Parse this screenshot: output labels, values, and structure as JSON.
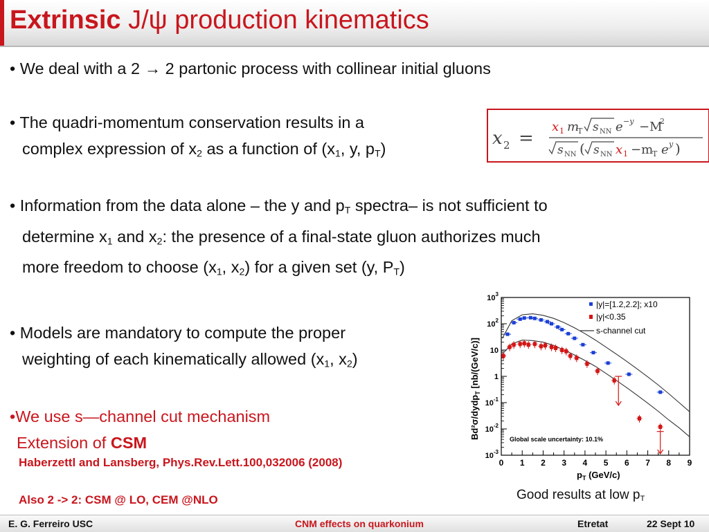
{
  "title": {
    "bold": "Extrinsic",
    "rest": " J/ψ production kinematics"
  },
  "bullets": {
    "b1": "We deal with a 2 → 2 partonic process with collinear initial gluons",
    "b2_line1": "The quadri-momentum  conservation results in a",
    "b2_line2_a": "complex expression of x",
    "b2_line2_b": " as a function of (x",
    "b2_line2_c": ", y, p",
    "b3_line1_a": "Information from the data alone – the y and p",
    "b3_line1_b": " spectra– is not sufficient to",
    "b3_line2_a": "determine x",
    "b3_line2_b": " and x",
    "b3_line2_c": ": the presence of a final-state gluon authorizes much",
    "b3_line3_a": "more freedom to choose (x",
    "b3_line3_b": ", x",
    "b3_line3_c": ") for a given set (y, P",
    "b4_line1": "Models are mandatory to compute the proper",
    "b4_line2_a": "weighting of each kinematically allowed (x",
    "b4_line2_b": ", x",
    "b5_line1": "We use s—channel cut mechanism",
    "b5_line2_a": "Extension of ",
    "b5_line2_b": "CSM",
    "ref": "Haberzettl and Lansberg, Phys.Rev.Lett.100,032006 (2008)",
    "also": "Also 2 -> 2: CSM @ LO, CEM @NLO"
  },
  "formula": {
    "lhs": "x",
    "lhs_sub": "2",
    "equals": "=",
    "num_x1": "x",
    "num_x1_sub": "1",
    "num_mt": "m",
    "num_mt_sub": "T",
    "sqrt_s": "s",
    "sqrt_s_sub": "NN",
    "exp_e": "e",
    "exp_neg_y": "−y",
    "minus_M": "−M",
    "sq": "2",
    "den_open": "(",
    "den_minus_mt": "−m",
    "den_exp_y": "y",
    "den_close": ")"
  },
  "chart_data": {
    "type": "scatter",
    "xlabel": "p",
    "xlabel_sub": "T",
    "xlabel_unit": " (GeV/c)",
    "ylabel": "Bd²σ/dydp",
    "ylabel_sub": "T",
    "ylabel_unit": " [nb/(GeV/c)]",
    "xlim": [
      0,
      9
    ],
    "ylim_log10": [
      -3,
      3
    ],
    "x_ticks": [
      "0",
      "1",
      "2",
      "3",
      "4",
      "5",
      "6",
      "7",
      "8",
      "9"
    ],
    "y_ticks": [
      {
        "base": "10",
        "exp": "-3"
      },
      {
        "base": "10",
        "exp": "-2"
      },
      {
        "base": "10",
        "exp": "-1"
      },
      {
        "base": "1",
        "exp": ""
      },
      {
        "base": "10",
        "exp": ""
      },
      {
        "base": "10",
        "exp": "2"
      },
      {
        "base": "10",
        "exp": "3"
      }
    ],
    "legend": {
      "placement": "top-right",
      "blue": "|y|=[1.2,2.2]; x10",
      "red": "|y|<0.35",
      "curve": "s-channel cut"
    },
    "annotation": "Global scale uncertainty: 10.1%",
    "colors": {
      "blue": "#1a3fd6",
      "red": "#d41515",
      "curve": "#333333"
    },
    "series": [
      {
        "name": "|y|=[1.2,2.2]; x10",
        "x": [
          0.3,
          0.6,
          0.9,
          1.1,
          1.4,
          1.6,
          1.9,
          2.2,
          2.4,
          2.7,
          2.9,
          3.2,
          3.5,
          3.9,
          4.4,
          5.1,
          6.1,
          7.6
        ],
        "y": [
          40,
          110,
          150,
          165,
          170,
          160,
          140,
          120,
          100,
          75,
          60,
          42,
          28,
          16,
          8,
          3.2,
          1.2,
          0.25
        ]
      },
      {
        "name": "|y|<0.35",
        "x": [
          0.1,
          0.4,
          0.6,
          0.9,
          1.1,
          1.3,
          1.6,
          1.9,
          2.1,
          2.4,
          2.6,
          2.9,
          3.1,
          3.3,
          3.6,
          4.1,
          4.6,
          5.4,
          6.6,
          7.6
        ],
        "y": [
          6,
          13,
          16,
          17,
          18,
          16,
          17,
          14,
          15,
          13,
          12,
          10,
          9,
          6,
          5,
          3,
          1.6,
          0.7,
          0.025,
          0.012
        ]
      },
      {
        "name": "s-channel cut",
        "x": [
          0.05,
          0.5,
          1,
          1.5,
          2,
          2.5,
          3,
          3.5,
          4,
          4.5,
          5,
          5.5,
          6,
          6.5,
          7,
          7.5,
          8,
          8.5,
          9
        ],
        "y": [
          28,
          130,
          220,
          240,
          210,
          160,
          110,
          70,
          42,
          24,
          13,
          7,
          3.7,
          1.9,
          0.95,
          0.47,
          0.22,
          0.1,
          0.045
        ]
      },
      {
        "name": "s-channel cut (|y|<0.35)",
        "x": [
          0.05,
          0.5,
          1,
          1.5,
          2,
          2.5,
          3,
          3.5,
          4,
          4.5,
          5,
          5.5,
          6,
          6.5,
          7,
          7.5,
          8,
          8.5,
          9
        ],
        "y": [
          7,
          17,
          24,
          23,
          20,
          15,
          10,
          6.5,
          4,
          2.4,
          1.3,
          0.7,
          0.37,
          0.19,
          0.095,
          0.047,
          0.022,
          0.011,
          0.005
        ]
      }
    ],
    "upper_limits": [
      {
        "x": 5.6,
        "y": 1.0
      },
      {
        "x": 7.6,
        "y": 0.008
      }
    ]
  },
  "caption": {
    "text": "Good results at low p",
    "sub": "T"
  },
  "footer": {
    "author": "E. G. Ferreiro USC",
    "topic": "CNM effects on quarkonium",
    "venue": "Etretat",
    "date": "22 Sept 10"
  }
}
